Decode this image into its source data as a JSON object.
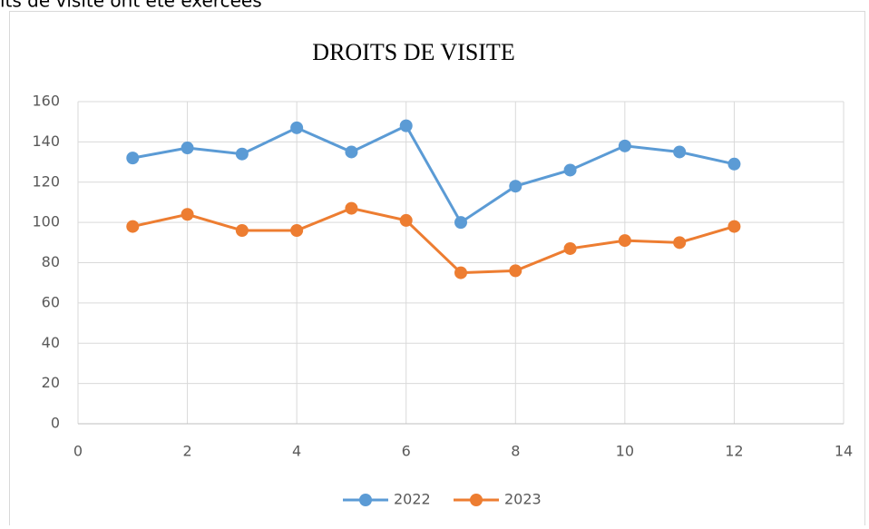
{
  "top_text": "its de visite ont été exercées",
  "chart_data": {
    "type": "line",
    "title": "DROITS DE VISITE",
    "x": [
      1,
      2,
      3,
      4,
      5,
      6,
      7,
      8,
      9,
      10,
      11,
      12
    ],
    "series": [
      {
        "name": "2022",
        "color": "#5b9bd5",
        "values": [
          132,
          137,
          134,
          147,
          135,
          148,
          100,
          118,
          126,
          138,
          135,
          129
        ]
      },
      {
        "name": "2023",
        "color": "#ed7d31",
        "values": [
          98,
          104,
          96,
          96,
          107,
          101,
          75,
          76,
          87,
          91,
          90,
          98
        ]
      }
    ],
    "xlim": [
      0,
      14
    ],
    "xticks": [
      0,
      2,
      4,
      6,
      8,
      10,
      12,
      14
    ],
    "ylim": [
      0,
      160
    ],
    "yticks": [
      0,
      20,
      40,
      60,
      80,
      100,
      120,
      140,
      160
    ],
    "grid": true,
    "legend": "bottom"
  }
}
